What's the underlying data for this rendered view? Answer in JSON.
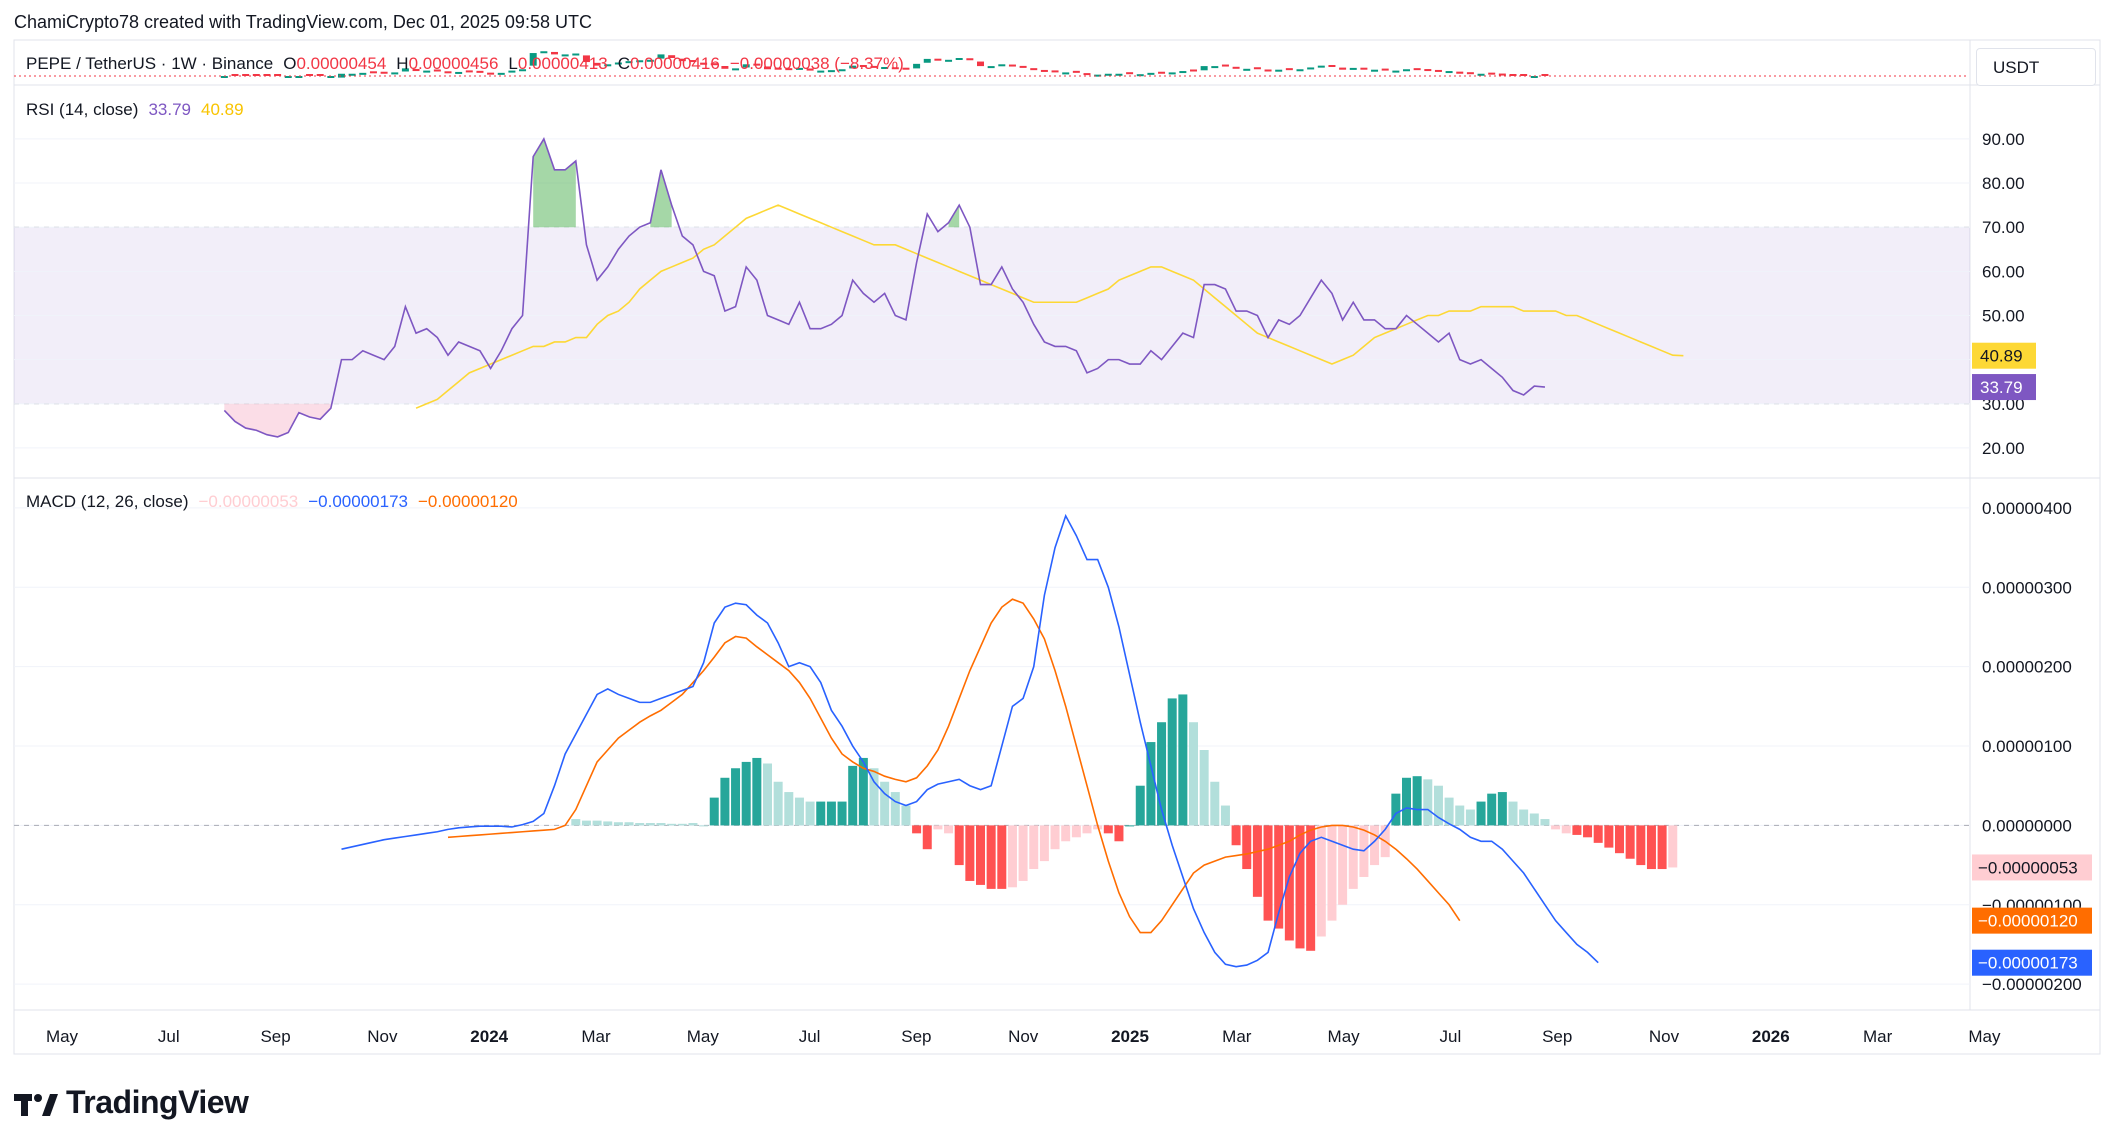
{
  "header": {
    "credit": "ChamiCrypto78 created with TradingView.com, Dec 01, 2025 09:58 UTC"
  },
  "price_legend": {
    "symbol": "PEPE / TetherUS · 1W · Binance",
    "o_label": "O",
    "o": "0.00000454",
    "h_label": "H",
    "h": "0.00000456",
    "l_label": "L",
    "l": "0.00000413",
    "c_label": "C",
    "c": "0.00000416",
    "change": "−0.00000038 (−8.37%)"
  },
  "currency_button": "USDT",
  "rsi_legend": {
    "name": "RSI (14, close)",
    "rsi": "33.79",
    "ma": "40.89"
  },
  "macd_legend": {
    "name": "MACD (12, 26, close)",
    "hist": "−0.00000053",
    "macd": "−0.00000173",
    "signal": "−0.00000120"
  },
  "colors": {
    "rsi": "#7e57c2",
    "rsi_ma": "#fdd835",
    "macd": "#2962ff",
    "signal": "#ff6d00",
    "hist_up_strong": "#26a69a",
    "hist_up_weak": "#b2dfdb",
    "hist_dn_strong": "#ff5252",
    "hist_dn_weak": "#ffcdd2"
  },
  "brand": "TradingView",
  "chart_data": [
    {
      "type": "line",
      "panel": "rsi",
      "ylim": [
        15,
        97
      ],
      "ticks": [
        "90.00",
        "80.00",
        "70.00",
        "60.00",
        "50.00",
        "40.00",
        "30.00",
        "20.00"
      ],
      "tick_values": [
        90,
        80,
        70,
        60,
        50,
        40,
        30,
        20
      ],
      "bands": {
        "upper": 70,
        "middle": 50,
        "lower": 30
      },
      "last_labels": {
        "ma": "40.89",
        "rsi": "33.79"
      },
      "x_start": 19,
      "rsi": [
        28.5,
        26,
        24.5,
        24,
        23,
        22.5,
        23.5,
        28,
        27,
        26.5,
        29,
        40,
        40,
        42,
        41,
        40,
        43,
        52,
        46,
        47,
        45,
        41,
        44,
        43,
        42,
        38,
        42,
        47,
        50,
        86,
        90,
        83,
        83,
        85,
        66,
        58,
        61,
        65,
        68,
        70,
        71,
        83,
        75,
        68,
        66,
        60,
        59,
        51,
        52,
        61,
        58,
        50,
        49,
        48,
        53,
        47,
        47,
        48,
        50,
        58,
        55,
        53,
        55,
        50,
        49,
        62,
        73,
        69,
        71,
        75,
        70,
        57,
        57,
        61,
        56,
        53,
        48,
        44,
        43,
        43,
        42,
        37,
        38,
        40,
        40,
        39,
        39,
        42,
        40,
        43,
        46,
        45,
        57,
        57,
        56,
        51,
        51,
        50,
        45,
        49,
        48,
        50,
        54,
        58,
        55,
        49,
        53,
        49,
        49,
        47,
        47,
        50,
        48,
        46,
        44,
        46,
        40,
        39,
        40,
        38,
        36,
        33,
        32,
        34,
        33.79
      ],
      "ma_start": 37,
      "ma": [
        29,
        30,
        31,
        33,
        35,
        37,
        38,
        39,
        40,
        41,
        42,
        43,
        43,
        44,
        44,
        45,
        45,
        48,
        50,
        51,
        53,
        56,
        58,
        60,
        61,
        62,
        63,
        65,
        66,
        68,
        70,
        72,
        73,
        74,
        75,
        74,
        73,
        72,
        71,
        70,
        69,
        68,
        67,
        66,
        66,
        66,
        65,
        64,
        63,
        62,
        61,
        60,
        59,
        58,
        57,
        56,
        55,
        54,
        53,
        53,
        53,
        53,
        53,
        54,
        55,
        56,
        58,
        59,
        60,
        61,
        61,
        60,
        59,
        58,
        56,
        54,
        52,
        50,
        48,
        46,
        45,
        44,
        43,
        42,
        41,
        40,
        39,
        40,
        41,
        43,
        45,
        46,
        47,
        48,
        49,
        50,
        50,
        51,
        51,
        51,
        52,
        52,
        52,
        52,
        51,
        51,
        51,
        51,
        50,
        50,
        49,
        48,
        47,
        46,
        45,
        44,
        43,
        42,
        41,
        40.89
      ]
    },
    {
      "type": "bar",
      "panel": "macd",
      "ylim": [
        -2.2e-06,
        4.1e-06
      ],
      "ticks": [
        "0.00000400",
        "0.00000300",
        "0.00000200",
        "0.00000100",
        "0.00000000",
        "−0.00000100",
        "−0.00000200"
      ],
      "tick_values": [
        4e-06,
        3e-06,
        2e-06,
        1e-06,
        0,
        -1e-06,
        -2e-06
      ],
      "last_labels": {
        "hist": "−0.00000053",
        "signal": "−0.00000120",
        "macd": "−0.00000173"
      },
      "x_start": 30,
      "macd": [
        -0.3,
        -0.27,
        -0.24,
        -0.21,
        -0.18,
        -0.16,
        -0.14,
        -0.12,
        -0.1,
        -0.08,
        -0.05,
        -0.03,
        -0.02,
        -0.01,
        -0.01,
        -0.01,
        -0.02,
        0.01,
        0.05,
        0.15,
        0.5,
        0.9,
        1.15,
        1.4,
        1.65,
        1.72,
        1.65,
        1.6,
        1.55,
        1.55,
        1.6,
        1.65,
        1.7,
        1.75,
        2.05,
        2.55,
        2.75,
        2.8,
        2.78,
        2.65,
        2.55,
        2.3,
        2.0,
        2.05,
        2.0,
        1.8,
        1.45,
        1.25,
        1.0,
        0.8,
        0.55,
        0.4,
        0.3,
        0.25,
        0.3,
        0.45,
        0.52,
        0.55,
        0.58,
        0.5,
        0.45,
        0.5,
        1.0,
        1.5,
        1.6,
        2.0,
        2.9,
        3.5,
        3.9,
        3.65,
        3.35,
        3.35,
        3.0,
        2.5,
        1.9,
        1.3,
        0.75,
        0.2,
        -0.25,
        -0.65,
        -1.05,
        -1.35,
        -1.6,
        -1.75,
        -1.78,
        -1.76,
        -1.7,
        -1.6,
        -1.1,
        -0.65,
        -0.35,
        -0.2,
        -0.15,
        -0.2,
        -0.25,
        -0.3,
        -0.32,
        -0.2,
        -0.05,
        0.15,
        0.22,
        0.2,
        0.2,
        0.1,
        0.02,
        -0.05,
        -0.15,
        -0.2,
        -0.2,
        -0.3,
        -0.45,
        -0.6,
        -0.8,
        -1.0,
        -1.2,
        -1.35,
        -1.5,
        -1.6,
        -1.73
      ]
    }
  ],
  "macd_signal": {
    "x_start": 40,
    "values": [
      -0.15,
      -0.14,
      -0.13,
      -0.12,
      -0.11,
      -0.1,
      -0.09,
      -0.08,
      -0.07,
      -0.06,
      -0.05,
      0.0,
      0.2,
      0.5,
      0.8,
      0.95,
      1.1,
      1.2,
      1.3,
      1.38,
      1.45,
      1.55,
      1.65,
      1.8,
      1.95,
      2.12,
      2.3,
      2.38,
      2.36,
      2.25,
      2.15,
      2.05,
      1.95,
      1.8,
      1.6,
      1.35,
      1.1,
      0.9,
      0.8,
      0.72,
      0.68,
      0.62,
      0.58,
      0.55,
      0.6,
      0.75,
      0.95,
      1.25,
      1.6,
      1.95,
      2.25,
      2.55,
      2.75,
      2.85,
      2.8,
      2.6,
      2.35,
      1.95,
      1.5,
      1.0,
      0.5,
      0.0,
      -0.45,
      -0.85,
      -1.15,
      -1.35,
      -1.35,
      -1.2,
      -1.0,
      -0.8,
      -0.6,
      -0.5,
      -0.45,
      -0.4,
      -0.38,
      -0.36,
      -0.33,
      -0.3,
      -0.25,
      -0.2,
      -0.12,
      -0.06,
      -0.02,
      0.0,
      0.0,
      -0.02,
      -0.06,
      -0.12,
      -0.2,
      -0.3,
      -0.42,
      -0.55,
      -0.7,
      -0.85,
      -1.0,
      -1.2
    ]
  },
  "macd_hist": {
    "x_start": 52,
    "values": [
      0.08,
      0.06,
      0.06,
      0.05,
      0.04,
      0.04,
      0.03,
      0.03,
      0.03,
      0.02,
      0.02,
      0.03,
      0.0,
      0.35,
      0.6,
      0.72,
      0.8,
      0.85,
      0.78,
      0.55,
      0.42,
      0.35,
      0.3,
      0.3,
      0.3,
      0.3,
      0.75,
      0.85,
      0.72,
      0.55,
      0.42,
      0.25,
      -0.1,
      -0.3,
      -0.05,
      -0.1,
      -0.5,
      -0.7,
      -0.75,
      -0.8,
      -0.8,
      -0.78,
      -0.7,
      -0.55,
      -0.45,
      -0.3,
      -0.2,
      -0.15,
      -0.1,
      -0.05,
      -0.1,
      -0.2,
      0.0,
      0.5,
      1.05,
      1.3,
      1.6,
      1.65,
      1.3,
      0.95,
      0.55,
      0.25,
      -0.25,
      -0.55,
      -0.9,
      -1.2,
      -1.3,
      -1.45,
      -1.55,
      -1.58,
      -1.4,
      -1.2,
      -1.0,
      -0.8,
      -0.65,
      -0.5,
      -0.4,
      0.4,
      0.6,
      0.62,
      0.58,
      0.5,
      0.35,
      0.25,
      0.2,
      0.3,
      0.4,
      0.42,
      0.3,
      0.2,
      0.15,
      0.08,
      -0.05,
      -0.1,
      -0.12,
      -0.15,
      -0.22,
      -0.28,
      -0.35,
      -0.42,
      -0.5,
      -0.55,
      -0.55,
      -0.53
    ],
    "colors": [
      "w",
      "w",
      "w",
      "w",
      "w",
      "w",
      "w",
      "w",
      "w",
      "w",
      "w",
      "w",
      "w",
      "s",
      "s",
      "s",
      "s",
      "s",
      "w",
      "w",
      "w",
      "w",
      "w",
      "s",
      "s",
      "s",
      "s",
      "s",
      "w",
      "w",
      "w",
      "w",
      "s",
      "s",
      "w",
      "w",
      "s",
      "s",
      "s",
      "s",
      "s",
      "w",
      "w",
      "w",
      "w",
      "w",
      "w",
      "w",
      "w",
      "w",
      "s",
      "s",
      "s",
      "s",
      "s",
      "s",
      "s",
      "s",
      "w",
      "w",
      "w",
      "w",
      "s",
      "s",
      "s",
      "s",
      "s",
      "s",
      "s",
      "s",
      "w",
      "w",
      "w",
      "w",
      "w",
      "w",
      "w",
      "s",
      "s",
      "s",
      "w",
      "w",
      "w",
      "w",
      "w",
      "s",
      "s",
      "s",
      "w",
      "w",
      "w",
      "w",
      "w",
      "w",
      "s",
      "s",
      "s",
      "s",
      "s",
      "s",
      "s",
      "s",
      "s",
      "w"
    ]
  },
  "x_axis": [
    "May",
    "Jul",
    "Sep",
    "Nov",
    "2024",
    "Mar",
    "May",
    "Jul",
    "Sep",
    "Nov",
    "2025",
    "Mar",
    "May",
    "Jul",
    "Sep",
    "Nov",
    "2026",
    "Mar",
    "May"
  ],
  "x_axis_bold": [
    "2024",
    "2025",
    "2026"
  ]
}
